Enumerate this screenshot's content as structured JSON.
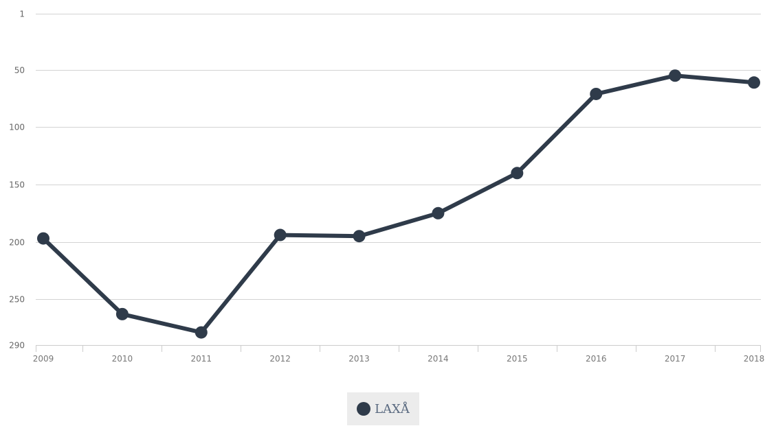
{
  "chart_data": {
    "type": "line",
    "title": "",
    "xlabel": "",
    "ylabel": "",
    "x": [
      "2009",
      "2010",
      "2011",
      "2012",
      "2013",
      "2014",
      "2015",
      "2016",
      "2017",
      "2018"
    ],
    "series": [
      {
        "name": "LAXÅ",
        "values": [
          197,
          263,
          279,
          194,
          195,
          175,
          140,
          71,
          55,
          61
        ]
      }
    ],
    "y_reversed": true,
    "ylim": [
      1,
      290
    ],
    "yticks": [
      "1",
      "50",
      "100",
      "150",
      "200",
      "250",
      "290"
    ],
    "grid": true,
    "legend": "bottom-center"
  },
  "colors": {
    "series": "#2f3b4a",
    "grid": "#d3d3d3",
    "legend_background": "#ececec",
    "legend_text": "#5a6a80"
  }
}
